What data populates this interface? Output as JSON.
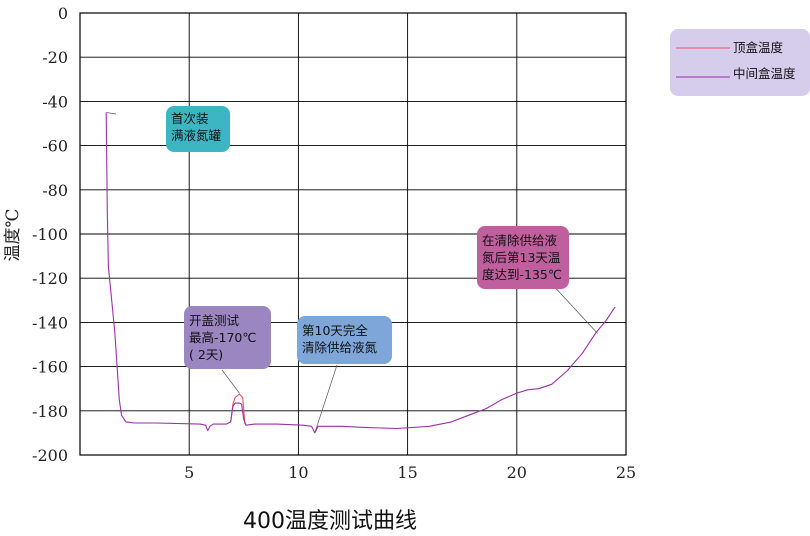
{
  "chart_data": {
    "type": "line",
    "title": "400温度测试曲线",
    "xlabel": "",
    "ylabel": "温度℃",
    "xlim": [
      0,
      25
    ],
    "ylim": [
      -200,
      0
    ],
    "x_ticks": [
      5,
      10,
      15,
      20,
      25
    ],
    "y_ticks": [
      0,
      -20,
      -40,
      -60,
      -80,
      -100,
      -120,
      -140,
      -160,
      -180,
      -200
    ],
    "grid": true,
    "legend_position": "top-right",
    "series": [
      {
        "name": "顶盒温度",
        "color": "#e8545a",
        "points": [
          [
            6.9,
            -185
          ],
          [
            7.0,
            -177
          ],
          [
            7.1,
            -174
          ],
          [
            7.3,
            -172.5
          ],
          [
            7.45,
            -174
          ],
          [
            7.5,
            -180
          ],
          [
            7.55,
            -186
          ]
        ]
      },
      {
        "name": "中间盒温度",
        "color": "#9b30a8",
        "points": [
          [
            1.2,
            -45
          ],
          [
            1.25,
            -90
          ],
          [
            1.3,
            -115
          ],
          [
            1.45,
            -130
          ],
          [
            1.6,
            -145
          ],
          [
            1.7,
            -160
          ],
          [
            1.8,
            -175
          ],
          [
            1.9,
            -182
          ],
          [
            2.1,
            -185
          ],
          [
            2.5,
            -185.5
          ],
          [
            3.5,
            -185.5
          ],
          [
            5.5,
            -186
          ],
          [
            5.75,
            -186.5
          ],
          [
            5.85,
            -189
          ],
          [
            5.95,
            -187
          ],
          [
            6.1,
            -186
          ],
          [
            6.4,
            -186
          ],
          [
            6.7,
            -186
          ],
          [
            6.9,
            -185
          ],
          [
            7.0,
            -178
          ],
          [
            7.1,
            -176.5
          ],
          [
            7.3,
            -176.5
          ],
          [
            7.4,
            -177
          ],
          [
            7.5,
            -184
          ],
          [
            7.6,
            -186.5
          ],
          [
            8.0,
            -186
          ],
          [
            9.0,
            -186
          ],
          [
            10.2,
            -186.5
          ],
          [
            10.6,
            -187
          ],
          [
            10.75,
            -190
          ],
          [
            10.9,
            -187
          ],
          [
            12,
            -187
          ],
          [
            13,
            -187.5
          ],
          [
            14.5,
            -188
          ],
          [
            16,
            -187
          ],
          [
            17,
            -185
          ],
          [
            17.8,
            -182
          ],
          [
            18.6,
            -179
          ],
          [
            19.3,
            -175
          ],
          [
            20,
            -172
          ],
          [
            20.5,
            -170.5
          ],
          [
            21,
            -170
          ],
          [
            21.6,
            -168
          ],
          [
            22.3,
            -162
          ],
          [
            23,
            -154
          ],
          [
            23.6,
            -145
          ],
          [
            24.1,
            -139
          ],
          [
            24.5,
            -133
          ]
        ]
      }
    ],
    "annotations": [
      {
        "lines": [
          "首次装",
          "满液氮罐"
        ],
        "target": [
          1.2,
          -45
        ]
      },
      {
        "lines": [
          "开盖测试",
          "最高-170℃",
          "( 2天)"
        ],
        "target": [
          7.3,
          -172
        ]
      },
      {
        "lines": [
          "第10天完全",
          "清除供给液氮"
        ],
        "target": [
          10.75,
          -190
        ]
      },
      {
        "lines": [
          "在清除供给液",
          "氮后第13天温",
          "度达到-135℃"
        ],
        "target": [
          23.7,
          -145
        ]
      }
    ]
  }
}
